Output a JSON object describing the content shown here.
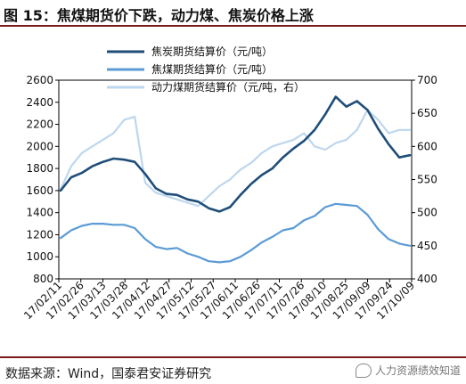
{
  "header": {
    "title": "图 15：焦煤期货价下跌，动力煤、焦炭价格上涨"
  },
  "footer": {
    "source": "数据来源：Wind，国泰君安证券研究",
    "watermark": "人力资源绩效知道"
  },
  "colors": {
    "coking_coal": "#1f4e79",
    "coke": "#5b9bd5",
    "thermal_coal": "#bdd7ee",
    "frame": "#7a1a1a"
  },
  "chart_data": {
    "type": "line",
    "legend_position": "top-center",
    "grid": false,
    "x_tick_labels": [
      "17/02/11",
      "17/02/26",
      "17/03/13",
      "17/03/28",
      "17/04/12",
      "17/04/27",
      "17/05/12",
      "17/05/27",
      "17/06/11",
      "17/06/26",
      "17/07/11",
      "17/07/26",
      "17/08/10",
      "17/08/25",
      "17/09/09",
      "17/09/24",
      "17/10/09"
    ],
    "y_left": {
      "min": 800,
      "max": 2600,
      "ticks": [
        800,
        1000,
        1200,
        1400,
        1600,
        1800,
        2000,
        2200,
        2400,
        2600
      ]
    },
    "y_right": {
      "min": 400,
      "max": 700,
      "ticks": [
        400,
        450,
        500,
        550,
        600,
        650,
        700
      ]
    },
    "series": [
      {
        "name": "焦炭期货结算价（元/吨）",
        "axis": "left",
        "color": "#1f4e79",
        "values": [
          1600,
          1720,
          1760,
          1820,
          1860,
          1890,
          1880,
          1860,
          1750,
          1620,
          1570,
          1560,
          1520,
          1500,
          1440,
          1410,
          1450,
          1560,
          1660,
          1740,
          1800,
          1900,
          1980,
          2050,
          2150,
          2290,
          2450,
          2360,
          2410,
          2330,
          2160,
          2020,
          1900,
          1920
        ]
      },
      {
        "name": "焦煤期货结算价（元/吨）",
        "axis": "left",
        "color": "#5b9bd5",
        "values": [
          1170,
          1240,
          1280,
          1300,
          1300,
          1290,
          1290,
          1260,
          1160,
          1090,
          1070,
          1080,
          1030,
          1000,
          960,
          950,
          960,
          1000,
          1060,
          1130,
          1180,
          1240,
          1260,
          1330,
          1370,
          1450,
          1480,
          1470,
          1460,
          1380,
          1250,
          1160,
          1120,
          1100
        ]
      },
      {
        "name": "动力煤期货结算价（元/吨，右）",
        "axis": "right",
        "color": "#bdd7ee",
        "values": [
          535,
          570,
          590,
          600,
          610,
          620,
          640,
          645,
          545,
          530,
          525,
          520,
          515,
          510,
          525,
          540,
          550,
          565,
          575,
          590,
          600,
          605,
          610,
          620,
          600,
          595,
          605,
          610,
          625,
          655,
          640,
          620,
          625,
          625
        ]
      }
    ]
  }
}
